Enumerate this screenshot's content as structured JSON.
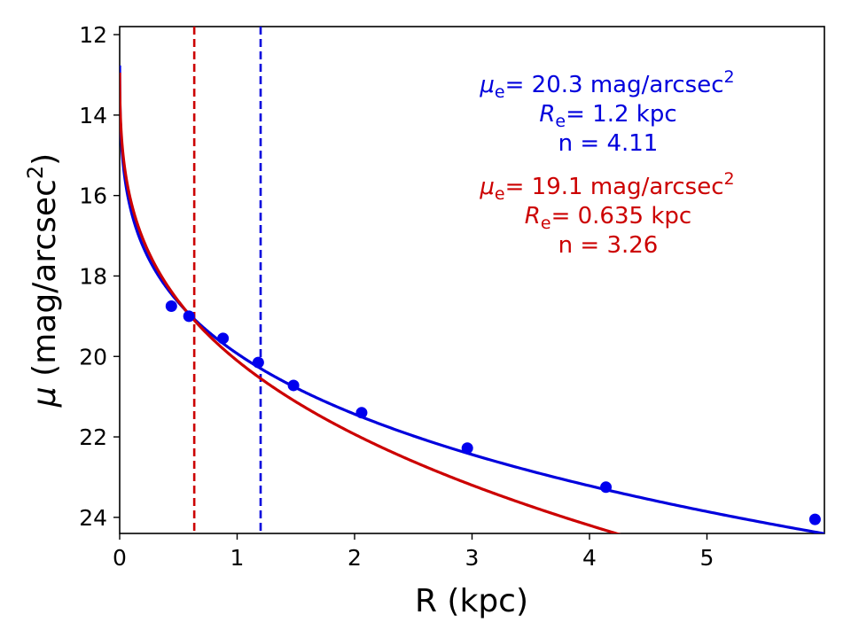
{
  "chart_data": {
    "type": "scatter",
    "xlabel": "R (kpc)",
    "ylabel": "μ (mag/arcsec²)",
    "xlim": [
      0,
      6.0
    ],
    "ylim": [
      24.4,
      11.8
    ],
    "y_inverted": true,
    "x_ticks": [
      0,
      1,
      2,
      3,
      4,
      5
    ],
    "y_ticks": [
      12,
      14,
      16,
      18,
      20,
      22,
      24
    ],
    "grid": false,
    "observed": {
      "name": "data",
      "color": "#0000ee",
      "x": [
        0.44,
        0.59,
        0.88,
        1.18,
        1.48,
        2.06,
        2.96,
        4.14,
        5.92
      ],
      "y": [
        18.75,
        19.0,
        19.55,
        20.15,
        20.72,
        21.4,
        22.28,
        23.25,
        24.05
      ]
    },
    "series": [
      {
        "name": "fit-blue",
        "color": "#0000dd",
        "mu_e": 20.3,
        "R_e": 1.2,
        "n": 4.11,
        "vline_x": 1.2,
        "label_mu": "= 20.3 mag/arcsec",
        "label_Re": "= 1.2 kpc",
        "label_n": "n = 4.11"
      },
      {
        "name": "fit-red",
        "color": "#cc0000",
        "mu_e": 19.1,
        "R_e": 0.635,
        "n": 3.26,
        "vline_x": 0.635,
        "label_mu": "= 19.1 mag/arcsec",
        "label_Re": "= 0.635 kpc",
        "label_n": "n = 3.26"
      }
    ],
    "symbol_mu": "μ",
    "symbol_R": "R",
    "subscript_e": "e",
    "superscript_2": "2"
  }
}
